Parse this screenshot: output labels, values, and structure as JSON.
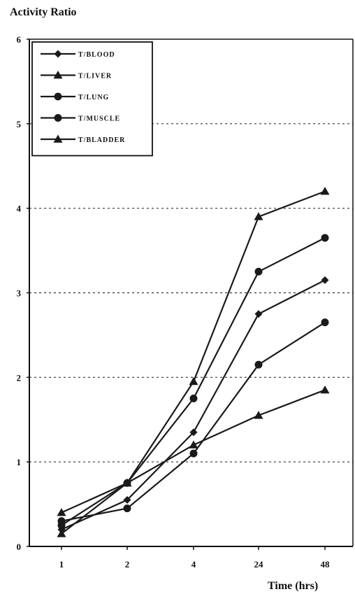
{
  "chart_data": {
    "type": "line",
    "ylabel": "Activity Ratio",
    "xlabel": "Time (hrs)",
    "categories": [
      "1",
      "2",
      "4",
      "24",
      "48"
    ],
    "ylim": [
      0,
      6
    ],
    "yticks": [
      "0",
      "1",
      "2",
      "3",
      "4",
      "5",
      "6"
    ],
    "grid": "horizontal-dashed",
    "legend_position": "top-left",
    "line_color": "#1a1a1a",
    "series": [
      {
        "name": "T/BLOOD",
        "marker": "diamond",
        "values": [
          0.2,
          0.55,
          1.35,
          2.75,
          3.15
        ]
      },
      {
        "name": "T/LIVER",
        "marker": "triangle",
        "values": [
          0.15,
          0.75,
          1.95,
          3.9,
          4.2
        ]
      },
      {
        "name": "T/LUNG",
        "marker": "circle",
        "values": [
          0.25,
          0.75,
          1.75,
          3.25,
          3.65
        ]
      },
      {
        "name": "T/MUSCLE",
        "marker": "circle",
        "values": [
          0.3,
          0.45,
          1.1,
          2.15,
          2.65
        ]
      },
      {
        "name": "T/BLADDER",
        "marker": "triangle",
        "values": [
          0.4,
          0.75,
          1.2,
          1.55,
          1.85
        ]
      }
    ]
  }
}
